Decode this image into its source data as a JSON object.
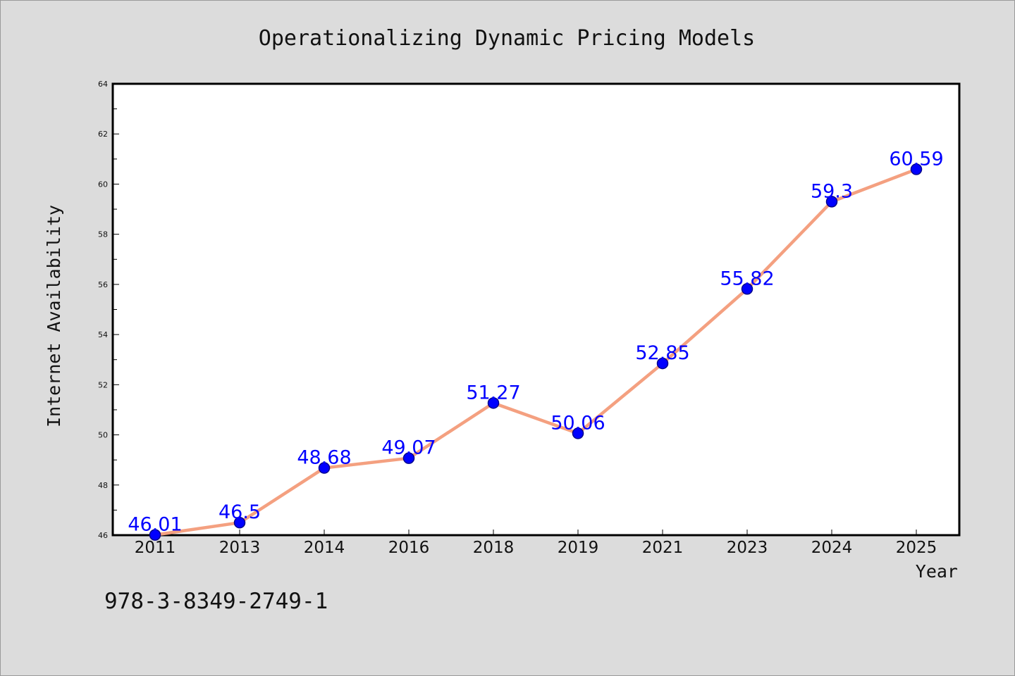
{
  "chart_data": {
    "type": "line",
    "title": "Operationalizing Dynamic Pricing Models",
    "xlabel": "Year",
    "ylabel": "Internet Availability",
    "categories": [
      "2011",
      "2013",
      "2014",
      "2016",
      "2018",
      "2019",
      "2021",
      "2023",
      "2024",
      "2025"
    ],
    "series": [
      {
        "values": [
          46.01,
          46.5,
          48.68,
          49.07,
          51.27,
          50.06,
          52.85,
          55.82,
          59.3,
          60.59
        ]
      }
    ],
    "data_labels": [
      "46.01",
      "46.5",
      "48.68",
      "49.07",
      "51.27",
      "50.06",
      "52.85",
      "55.82",
      "59.3",
      "60.59"
    ],
    "ylim": [
      46,
      64
    ],
    "yticks": [
      46,
      48,
      50,
      52,
      54,
      56,
      58,
      60,
      62,
      64
    ],
    "grid": false,
    "legend": "none",
    "colors": {
      "line": "#f4a080",
      "marker": "#0000ff",
      "marker_edge": "#00008b",
      "data_label": "#0000ff",
      "background": "#dcdcdc",
      "plot_background": "#ffffff"
    }
  },
  "footnote": "978-3-8349-2749-1"
}
